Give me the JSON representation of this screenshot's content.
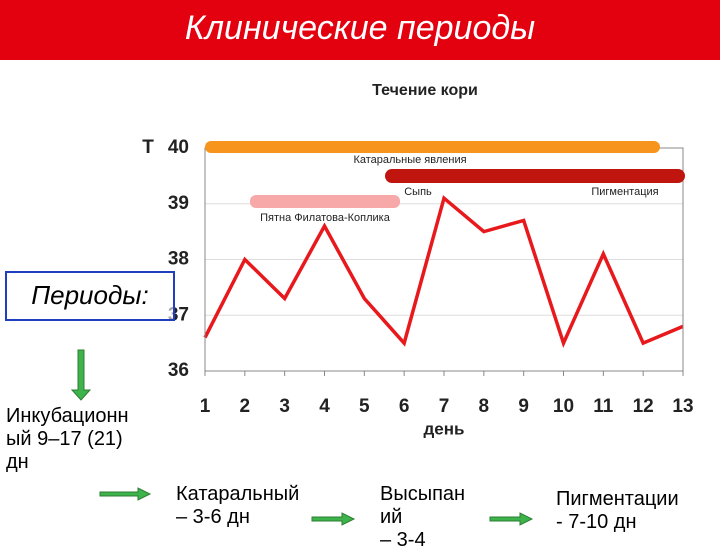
{
  "header": {
    "title": "Клинические периоды"
  },
  "chart_data": {
    "type": "line",
    "title": "Течение кори",
    "x_label": "день",
    "y_label": "Т",
    "x": [
      1,
      2,
      3,
      4,
      5,
      6,
      7,
      8,
      9,
      10,
      11,
      12,
      13
    ],
    "series": [
      {
        "name": "Т",
        "color": "#e8191c",
        "values": [
          36.6,
          38,
          37.3,
          38.6,
          37.3,
          36.5,
          39.1,
          38.5,
          38.7,
          36.5,
          38.1,
          36.5,
          36.8
        ]
      }
    ],
    "xlim": [
      1,
      13
    ],
    "xticks": [
      1,
      2,
      3,
      4,
      5,
      6,
      7,
      8,
      9,
      10,
      11,
      12,
      13
    ],
    "ylim": [
      36,
      40
    ],
    "yticks": [
      36,
      37,
      38,
      39,
      40
    ],
    "grid": true,
    "annotations": [
      "Катаральные явления",
      "Сыпь",
      "Пигментация",
      "Пятна Филатова-Коплика"
    ]
  },
  "periods_label": "Периоды:",
  "stages": [
    {
      "lines": [
        "Инкубационн",
        "ый 9–17 (21)",
        "дн"
      ]
    },
    {
      "lines": [
        "Катаральный",
        "– 3-6 дн"
      ]
    },
    {
      "lines": [
        "Высыпан",
        "ий",
        "– 3-4"
      ]
    },
    {
      "lines": [
        "Пигментации",
        "- 7-10 дн"
      ]
    }
  ]
}
